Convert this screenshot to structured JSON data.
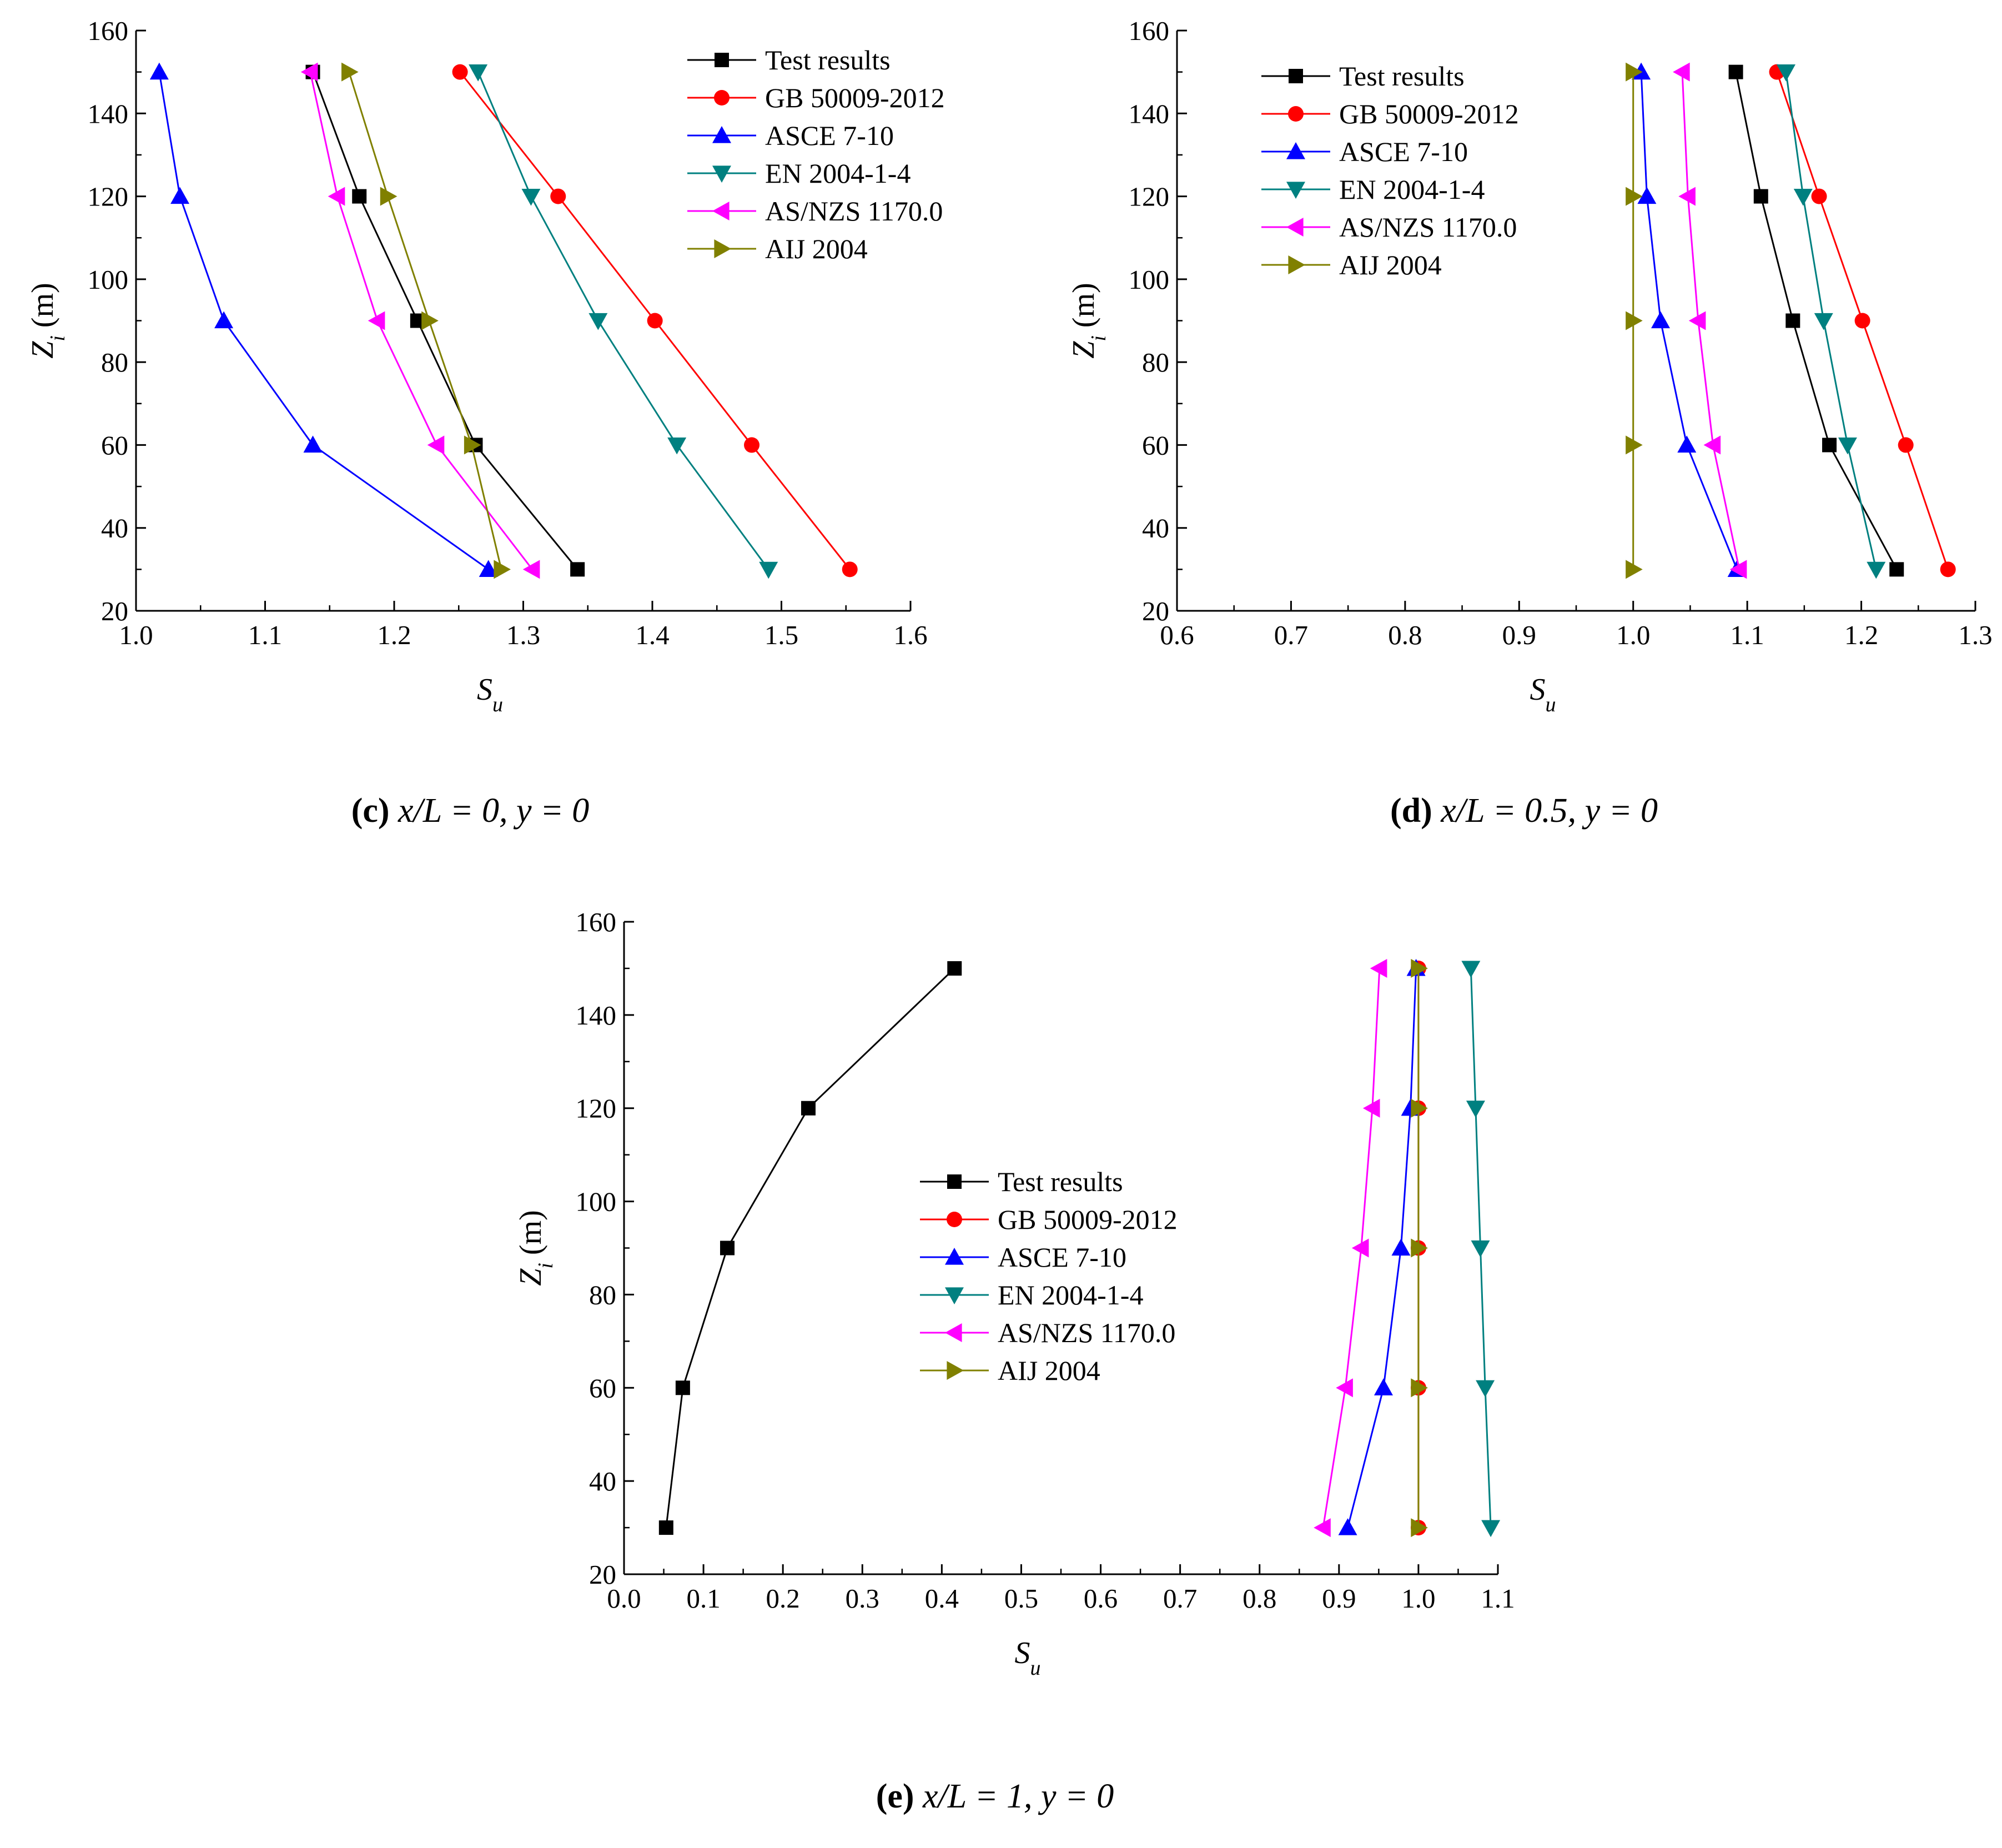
{
  "figure": {
    "panels": [
      {
        "id": "c",
        "caption": {
          "letter": "(c)",
          "text": " x/L = 0, y = 0"
        },
        "ylabel": {
          "main": "Z",
          "sub": "i",
          "unit": " (m)"
        },
        "xlabel": {
          "main": "S",
          "sub": "u"
        },
        "xticks": [
          "1.0",
          "1.1",
          "1.2",
          "1.3",
          "1.4",
          "1.5",
          "1.6"
        ],
        "yticks": [
          "20",
          "40",
          "60",
          "80",
          "100",
          "120",
          "140",
          "160"
        ]
      },
      {
        "id": "d",
        "caption": {
          "letter": "(d)",
          "text": " x/L = 0.5, y = 0"
        },
        "ylabel": {
          "main": "Z",
          "sub": "i",
          "unit": " (m)"
        },
        "xlabel": {
          "main": "S",
          "sub": "u"
        },
        "xticks": [
          "0.6",
          "0.7",
          "0.8",
          "0.9",
          "1.0",
          "1.1",
          "1.2",
          "1.3"
        ],
        "yticks": [
          "20",
          "40",
          "60",
          "80",
          "100",
          "120",
          "140",
          "160"
        ]
      },
      {
        "id": "e",
        "caption": {
          "letter": "(e)",
          "text": " x/L = 1, y = 0"
        },
        "ylabel": {
          "main": "Z",
          "sub": "i",
          "unit": " (m)"
        },
        "xlabel": {
          "main": "S",
          "sub": "u"
        },
        "xticks": [
          "0.0",
          "0.1",
          "0.2",
          "0.3",
          "0.4",
          "0.5",
          "0.6",
          "0.7",
          "0.8",
          "0.9",
          "1.0",
          "1.1"
        ],
        "yticks": [
          "20",
          "40",
          "60",
          "80",
          "100",
          "120",
          "140",
          "160"
        ]
      }
    ]
  },
  "chart_data": [
    {
      "type": "line",
      "title": "(c) x/L = 0, y = 0",
      "xlabel": "S_u",
      "ylabel": "Z_i (m)",
      "xlim": [
        1.0,
        1.6
      ],
      "ylim": [
        20,
        160
      ],
      "legend_position": "top-right",
      "y": [
        150,
        120,
        90,
        60,
        30
      ],
      "series": [
        {
          "name": "Test results",
          "color": "#000000",
          "marker": "square",
          "values": [
            1.137,
            1.173,
            1.218,
            1.263,
            1.342
          ]
        },
        {
          "name": "GB 50009-2012",
          "color": "#ff0000",
          "marker": "circle",
          "values": [
            1.251,
            1.327,
            1.402,
            1.477,
            1.553
          ]
        },
        {
          "name": "ASCE 7-10",
          "color": "#0000ff",
          "marker": "triangle-up",
          "values": [
            1.018,
            1.034,
            1.068,
            1.137,
            1.273
          ]
        },
        {
          "name": "EN 2004-1-4",
          "color": "#008080",
          "marker": "triangle-down",
          "values": [
            1.265,
            1.306,
            1.358,
            1.419,
            1.49
          ]
        },
        {
          "name": "AS/NZS 1170.0",
          "color": "#ff00ff",
          "marker": "triangle-left",
          "values": [
            1.135,
            1.156,
            1.187,
            1.233,
            1.307
          ]
        },
        {
          "name": "AIJ 2004",
          "color": "#808000",
          "marker": "triangle-right",
          "values": [
            1.165,
            1.195,
            1.227,
            1.26,
            1.283
          ]
        }
      ]
    },
    {
      "type": "line",
      "title": "(d) x/L = 0.5, y = 0",
      "xlabel": "S_u",
      "ylabel": "Z_i (m)",
      "xlim": [
        0.6,
        1.3
      ],
      "ylim": [
        20,
        160
      ],
      "legend_position": "top-left",
      "y": [
        150,
        120,
        90,
        60,
        30
      ],
      "series": [
        {
          "name": "Test results",
          "color": "#000000",
          "marker": "square",
          "values": [
            1.09,
            1.112,
            1.14,
            1.172,
            1.231
          ]
        },
        {
          "name": "GB 50009-2012",
          "color": "#ff0000",
          "marker": "circle",
          "values": [
            1.126,
            1.163,
            1.201,
            1.239,
            1.276
          ]
        },
        {
          "name": "ASCE 7-10",
          "color": "#0000ff",
          "marker": "triangle-up",
          "values": [
            1.007,
            1.012,
            1.024,
            1.047,
            1.091
          ]
        },
        {
          "name": "EN 2004-1-4",
          "color": "#008080",
          "marker": "triangle-down",
          "values": [
            1.134,
            1.149,
            1.167,
            1.188,
            1.213
          ]
        },
        {
          "name": "AS/NZS 1170.0",
          "color": "#ff00ff",
          "marker": "triangle-left",
          "values": [
            1.043,
            1.048,
            1.057,
            1.07,
            1.093
          ]
        },
        {
          "name": "AIJ 2004",
          "color": "#808000",
          "marker": "triangle-right",
          "values": [
            1.0,
            1.0,
            1.0,
            1.0,
            1.0
          ]
        }
      ]
    },
    {
      "type": "line",
      "title": "(e) x/L = 1, y = 0",
      "xlabel": "S_u",
      "ylabel": "Z_i (m)",
      "xlim": [
        0.0,
        1.1
      ],
      "ylim": [
        20,
        160
      ],
      "legend_position": "center",
      "y": [
        150,
        120,
        90,
        60,
        30
      ],
      "series": [
        {
          "name": "Test results",
          "color": "#000000",
          "marker": "square",
          "values": [
            0.416,
            0.232,
            0.13,
            0.074,
            0.053
          ]
        },
        {
          "name": "GB 50009-2012",
          "color": "#ff0000",
          "marker": "circle",
          "values": [
            1.0,
            1.0,
            1.0,
            1.0,
            1.0
          ]
        },
        {
          "name": "ASCE 7-10",
          "color": "#0000ff",
          "marker": "triangle-up",
          "values": [
            0.997,
            0.99,
            0.978,
            0.956,
            0.911
          ]
        },
        {
          "name": "EN 2004-1-4",
          "color": "#008080",
          "marker": "triangle-down",
          "values": [
            1.066,
            1.072,
            1.078,
            1.084,
            1.091
          ]
        },
        {
          "name": "AS/NZS 1170.0",
          "color": "#ff00ff",
          "marker": "triangle-left",
          "values": [
            0.951,
            0.942,
            0.928,
            0.908,
            0.88
          ]
        },
        {
          "name": "AIJ 2004",
          "color": "#808000",
          "marker": "triangle-right",
          "values": [
            1.0,
            1.0,
            1.0,
            1.0,
            1.0
          ]
        }
      ]
    }
  ]
}
